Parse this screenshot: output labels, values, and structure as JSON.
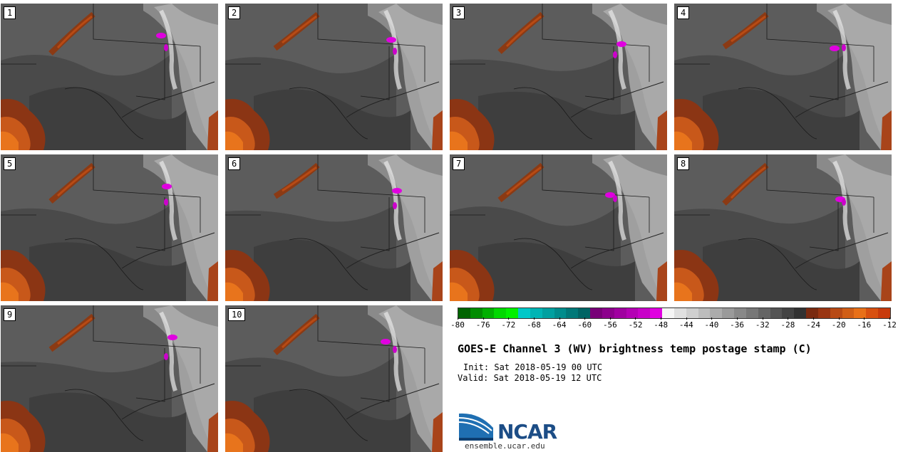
{
  "panels": [
    {
      "label": "1"
    },
    {
      "label": "2"
    },
    {
      "label": "3"
    },
    {
      "label": "4"
    },
    {
      "label": "5"
    },
    {
      "label": "6"
    },
    {
      "label": "7"
    },
    {
      "label": "8"
    },
    {
      "label": "9"
    },
    {
      "label": "10"
    }
  ],
  "colorbar": {
    "colors": [
      "#006400",
      "#008c00",
      "#00b000",
      "#00d800",
      "#00f000",
      "#00c8c8",
      "#00b4b4",
      "#00a0a0",
      "#008c8c",
      "#007878",
      "#006464",
      "#780078",
      "#8c008c",
      "#a000a0",
      "#b400b4",
      "#c800c8",
      "#e000e0",
      "#f5f5f5",
      "#e0e0e0",
      "#cfcfcf",
      "#bdbdbd",
      "#acacac",
      "#9a9a9a",
      "#888888",
      "#777777",
      "#656565",
      "#545454",
      "#434343",
      "#323232",
      "#7a2a10",
      "#9a3512",
      "#b84a14",
      "#d05e16",
      "#e87018",
      "#d85010",
      "#c83a0c"
    ],
    "ticks": [
      "-80",
      "-76",
      "-72",
      "-68",
      "-64",
      "-60",
      "-56",
      "-52",
      "-48",
      "-44",
      "-40",
      "-36",
      "-32",
      "-28",
      "-24",
      "-20",
      "-16",
      "-12"
    ]
  },
  "title": "GOES-E Channel 3 (WV) brightness temp postage stamp (C)",
  "init": "Init: Sat 2018-05-19 00 UTC",
  "valid": "Valid: Sat 2018-05-19 12 UTC",
  "logo_text": "NCAR",
  "url": "ensemble.ucar.edu"
}
